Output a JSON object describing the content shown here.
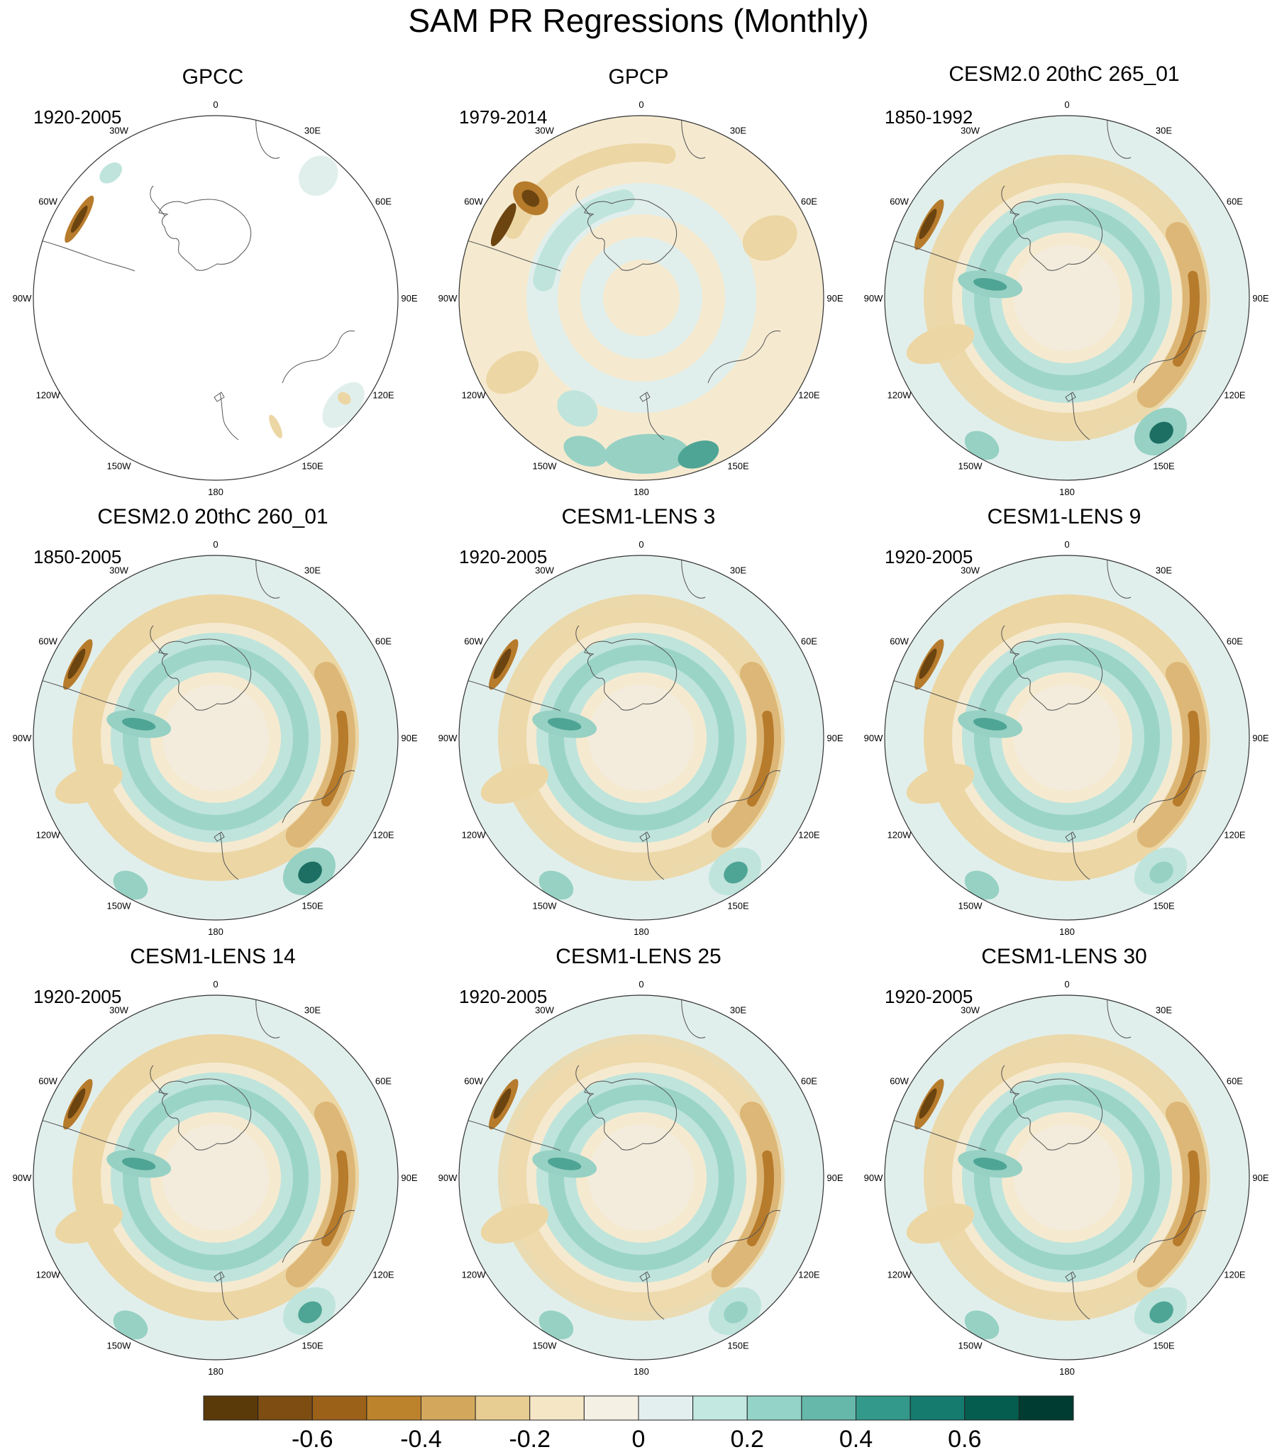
{
  "title": "SAM PR Regressions (Monthly)",
  "panels": [
    {
      "title": "GPCC",
      "period": "1920-2005"
    },
    {
      "title": "GPCP",
      "period": "1979-2014"
    },
    {
      "title": "CESM2.0 20thC 265_01",
      "period": "1850-1992"
    },
    {
      "title": "CESM2.0 20thC 260_01",
      "period": "1850-2005"
    },
    {
      "title": "CESM1-LENS 3",
      "period": "1920-2005"
    },
    {
      "title": "CESM1-LENS 9",
      "period": "1920-2005"
    },
    {
      "title": "CESM1-LENS 14",
      "period": "1920-2005"
    },
    {
      "title": "CESM1-LENS 25",
      "period": "1920-2005"
    },
    {
      "title": "CESM1-LENS 30",
      "period": "1920-2005"
    }
  ],
  "grid_labels": [
    "0",
    "30E",
    "60E",
    "90E",
    "120E",
    "150E",
    "180",
    "150W",
    "120W",
    "90W",
    "60W",
    "30W"
  ],
  "colorbar": {
    "colors": [
      "#5b3a0a",
      "#7d4d12",
      "#9b6119",
      "#bd822c",
      "#d3a85c",
      "#e8cd93",
      "#f5e6c6",
      "#f4f0e4",
      "#e3efef",
      "#c3e8e1",
      "#94d4c8",
      "#65b8aa",
      "#33998b",
      "#157b6e",
      "#055d4f",
      "#003c32"
    ],
    "tick_labels": [
      "-0.6",
      "-0.4",
      "-0.2",
      "0",
      "0.2",
      "0.4",
      "0.6"
    ],
    "tick_values": [
      -0.6,
      -0.4,
      -0.2,
      0,
      0.2,
      0.4,
      0.6
    ],
    "range": [
      -0.8,
      0.8
    ]
  }
}
